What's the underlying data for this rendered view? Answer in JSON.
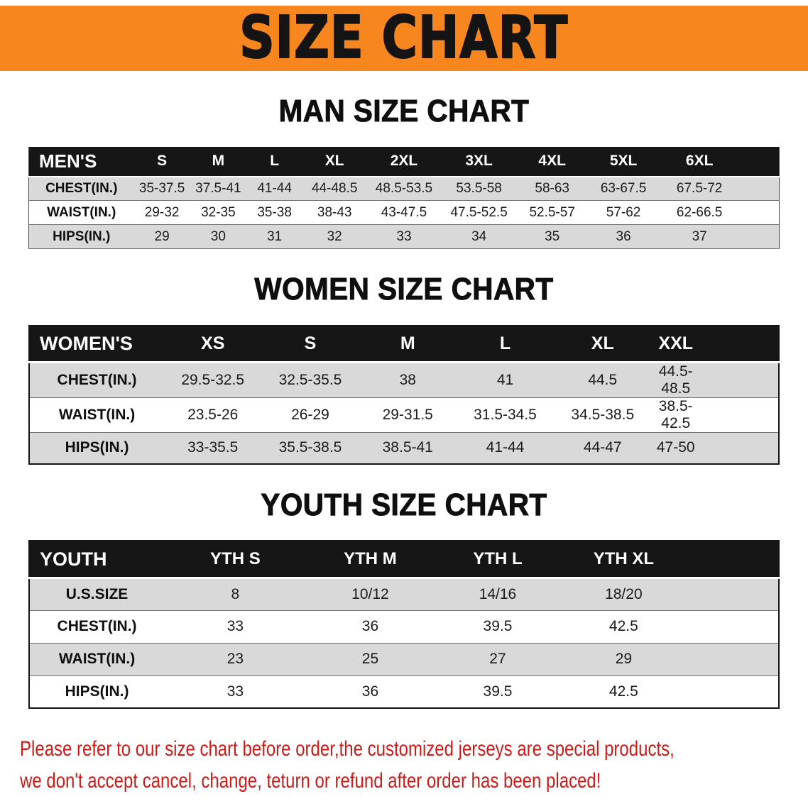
{
  "banner": {
    "title": "SIZE CHART"
  },
  "colors": {
    "banner_bg": "#F6861D",
    "header_row_bg": "#161616",
    "header_row_text": "#FFFFFF",
    "row_alt_bg": "#D9D9D9",
    "disclaimer_red": "#CE1A17"
  },
  "sections": [
    {
      "heading": "MAN SIZE CHART",
      "table": {
        "header": [
          "MEN'S",
          "S",
          "M",
          "L",
          "XL",
          "2XL",
          "3XL",
          "4XL",
          "5XL",
          "6XL"
        ],
        "rows": [
          [
            "CHEST(IN.)",
            "35-37.5",
            "37.5-41",
            "41-44",
            "44-48.5",
            "48.5-53.5",
            "53.5-58",
            "58-63",
            "63-67.5",
            "67.5-72"
          ],
          [
            "WAIST(IN.)",
            "29-32",
            "32-35",
            "35-38",
            "38-43",
            "43-47.5",
            "47.5-52.5",
            "52.5-57",
            "57-62",
            "62-66.5"
          ],
          [
            "HIPS(IN.)",
            "29",
            "30",
            "31",
            "32",
            "33",
            "34",
            "35",
            "36",
            "37"
          ]
        ]
      }
    },
    {
      "heading": "WOMEN SIZE CHART",
      "table": {
        "header": [
          "WOMEN'S",
          "XS",
          "S",
          "M",
          "L",
          "XL",
          "XXL"
        ],
        "rows": [
          [
            "CHEST(IN.)",
            "29.5-32.5",
            "32.5-35.5",
            "38",
            "41",
            "44.5",
            "44.5-48.5"
          ],
          [
            "WAIST(IN.)",
            "23.5-26",
            "26-29",
            "29-31.5",
            "31.5-34.5",
            "34.5-38.5",
            "38.5-42.5"
          ],
          [
            "HIPS(IN.)",
            "33-35.5",
            "35.5-38.5",
            "38.5-41",
            "41-44",
            "44-47",
            "47-50"
          ]
        ]
      }
    },
    {
      "heading": "YOUTH SIZE CHART",
      "table": {
        "header": [
          "YOUTH",
          "YTH S",
          "YTH M",
          "YTH L",
          "YTH XL"
        ],
        "rows": [
          [
            "U.S.SIZE",
            "8",
            "10/12",
            "14/16",
            "18/20"
          ],
          [
            "CHEST(IN.)",
            "33",
            "36",
            "39.5",
            "42.5"
          ],
          [
            "WAIST(IN.)",
            "23",
            "25",
            "27",
            "29"
          ],
          [
            "HIPS(IN.)",
            "33",
            "36",
            "39.5",
            "42.5"
          ]
        ]
      }
    }
  ],
  "disclaimer": {
    "line1": "Please refer to our size chart before order,the customized jerseys are special products,",
    "line2": "we don't accept cancel, change, teturn or refund after order has been placed!"
  }
}
